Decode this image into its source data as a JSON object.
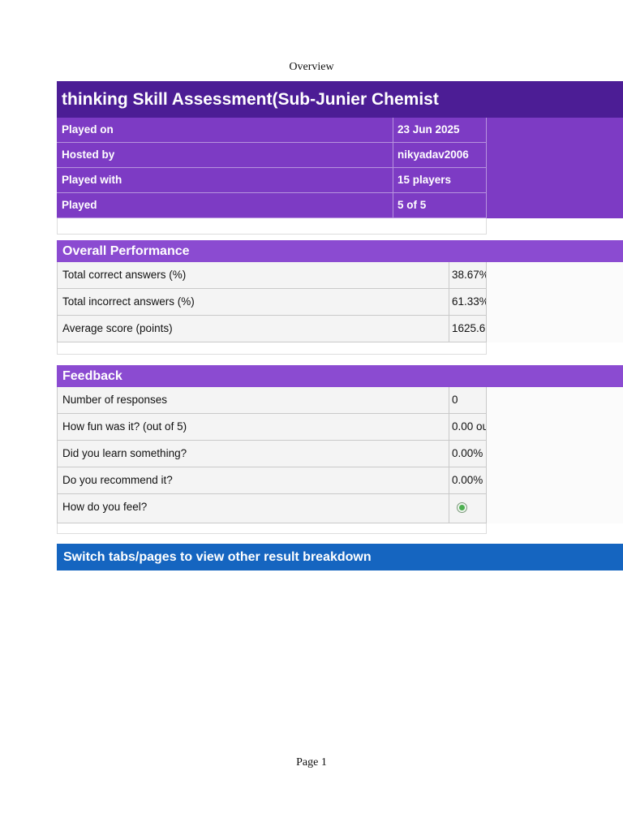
{
  "page": {
    "header_label": "Overview",
    "footer_label": "Page 1"
  },
  "report": {
    "title": "thinking Skill Assessment(Sub-Junier Chemist",
    "info_rows": [
      {
        "label": "Played on",
        "value": "23 Jun 2025"
      },
      {
        "label": "Hosted by",
        "value": "nikyadav2006"
      },
      {
        "label": "Played with",
        "value": "15 players"
      },
      {
        "label": "Played",
        "value": "5 of 5"
      }
    ]
  },
  "overall": {
    "title": "Overall Performance",
    "rows": [
      {
        "label": "Total correct answers (%)",
        "value": "38.67%"
      },
      {
        "label": "Total incorrect answers (%)",
        "value": "61.33%"
      },
      {
        "label": "Average score (points)",
        "value": "1625.6"
      }
    ]
  },
  "feedback": {
    "title": "Feedback",
    "rows": [
      {
        "label": "Number of responses",
        "value": "0"
      },
      {
        "label": "How fun was it? (out of 5)",
        "value": "0.00 ou"
      },
      {
        "label": "Did you learn something?",
        "value": "0.00%"
      },
      {
        "label": "Do you recommend it?",
        "value": "0.00%"
      },
      {
        "label": "How do you feel?",
        "value": "",
        "icon": "radio-selected-green"
      }
    ]
  },
  "banner": {
    "text": "Switch tabs/pages to view other result breakdown"
  },
  "colors": {
    "title_bar": "#4c1d95",
    "info_row": "#7d3bc4",
    "section_header": "#8b4bd1",
    "banner": "#1565c0",
    "feel_dot": "#4caf50"
  }
}
